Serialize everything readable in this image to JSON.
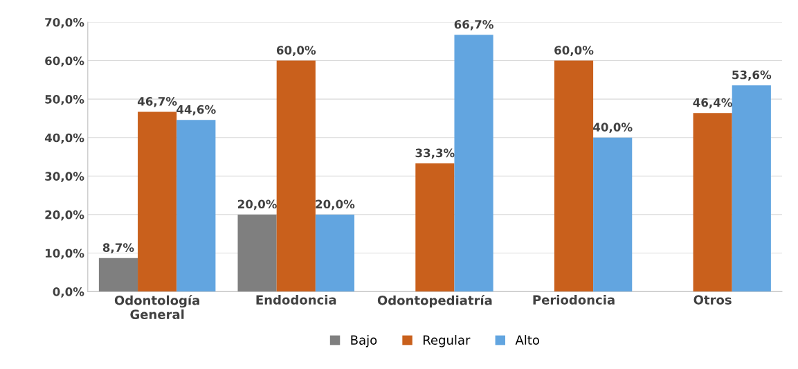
{
  "chart_data": {
    "type": "bar",
    "categories": [
      "Odontología\nGeneral",
      "Endodoncia",
      "Odontopediatría",
      "Periodoncia",
      "Otros"
    ],
    "series": [
      {
        "name": "Bajo",
        "color": "#7f7f7f",
        "values": [
          8.7,
          20.0,
          0,
          0,
          0
        ],
        "value_labels": [
          "8,7%",
          "20,0%",
          null,
          null,
          null
        ]
      },
      {
        "name": "Regular",
        "color": "#c9601c",
        "values": [
          46.7,
          60.0,
          33.3,
          60.0,
          46.4
        ],
        "value_labels": [
          "46,7%",
          "60,0%",
          "33,3%",
          "60,0%",
          "46,4%"
        ]
      },
      {
        "name": "Alto",
        "color": "#62a5e0",
        "values": [
          44.6,
          20.0,
          66.7,
          40.0,
          53.6
        ],
        "value_labels": [
          "44,6%",
          "20,0%",
          "66,7%",
          "40,0%",
          "53,6%"
        ]
      }
    ],
    "ylim": [
      0,
      70
    ],
    "yticks": [
      {
        "value": 0,
        "label": "0,0%"
      },
      {
        "value": 10,
        "label": "10,0%"
      },
      {
        "value": 20,
        "label": "20,0%"
      },
      {
        "value": 30,
        "label": "30,0%"
      },
      {
        "value": 40,
        "label": "40,0%"
      },
      {
        "value": 50,
        "label": "50,0%"
      },
      {
        "value": 60,
        "label": "60,0%"
      },
      {
        "value": 70,
        "label": "70,0%"
      }
    ],
    "grid": "y",
    "legend": "bottom"
  }
}
